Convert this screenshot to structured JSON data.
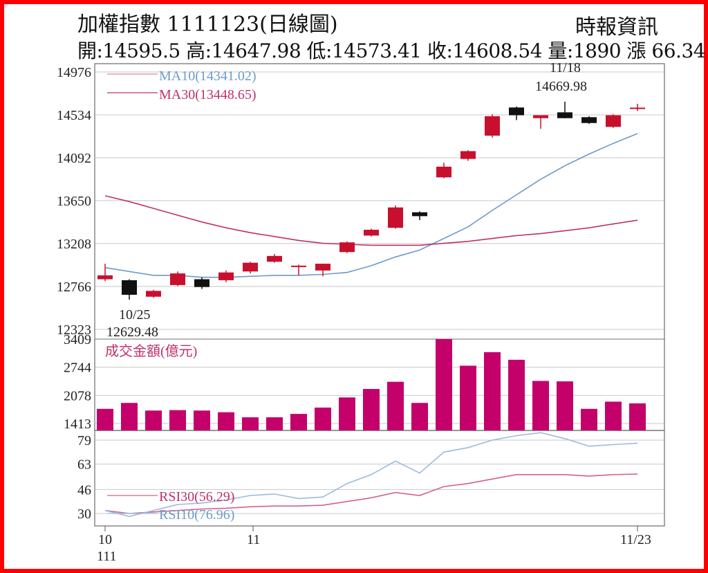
{
  "header": {
    "title": "加權指數 1111123(日線圖)",
    "source": "時報資訊",
    "summary": "開:14595.5 高:14647.98 低:14573.41 收:14608.54 量:1890 漲 66.34"
  },
  "colors": {
    "frame": "#ff0000",
    "up": "#c8102e",
    "down": "#111111",
    "volume": "#c4006a",
    "ma10": "#6b9bc9",
    "ma30": "#c0306a",
    "rsi30": "#d2608f",
    "rsi10": "#9bbbdc",
    "grid": "#c8c8c8"
  },
  "chart_data": [
    {
      "type": "candlestick",
      "panel": "price",
      "ylim": [
        12323,
        14976
      ],
      "yticks": [
        "14976",
        "14534",
        "14092",
        "13650",
        "13208",
        "12766",
        "12323"
      ],
      "grid": true,
      "candles": [
        {
          "o": 12840,
          "h": 13000,
          "l": 12820,
          "c": 12880
        },
        {
          "o": 12830,
          "h": 12840,
          "l": 12629.48,
          "c": 12680
        },
        {
          "o": 12660,
          "h": 12730,
          "l": 12650,
          "c": 12720
        },
        {
          "o": 12780,
          "h": 12920,
          "l": 12770,
          "c": 12900
        },
        {
          "o": 12840,
          "h": 12860,
          "l": 12740,
          "c": 12760
        },
        {
          "o": 12830,
          "h": 12930,
          "l": 12810,
          "c": 12910
        },
        {
          "o": 12920,
          "h": 13020,
          "l": 12900,
          "c": 13010
        },
        {
          "o": 13020,
          "h": 13100,
          "l": 13010,
          "c": 13080
        },
        {
          "o": 12970,
          "h": 12990,
          "l": 12880,
          "c": 12980
        },
        {
          "o": 12930,
          "h": 13000,
          "l": 12870,
          "c": 13000
        },
        {
          "o": 13120,
          "h": 13230,
          "l": 13110,
          "c": 13220
        },
        {
          "o": 13290,
          "h": 13360,
          "l": 13280,
          "c": 13350
        },
        {
          "o": 13370,
          "h": 13600,
          "l": 13360,
          "c": 13580
        },
        {
          "o": 13530,
          "h": 13540,
          "l": 13450,
          "c": 13490
        },
        {
          "o": 13890,
          "h": 14040,
          "l": 13880,
          "c": 14000
        },
        {
          "o": 14080,
          "h": 14170,
          "l": 14060,
          "c": 14160
        },
        {
          "o": 14320,
          "h": 14540,
          "l": 14300,
          "c": 14520
        },
        {
          "o": 14610,
          "h": 14620,
          "l": 14480,
          "c": 14530
        },
        {
          "o": 14500,
          "h": 14520,
          "l": 14390,
          "c": 14530
        },
        {
          "o": 14560,
          "h": 14669.98,
          "l": 14500,
          "c": 14500
        },
        {
          "o": 14510,
          "h": 14520,
          "l": 14440,
          "c": 14450
        },
        {
          "o": 14410,
          "h": 14540,
          "l": 14400,
          "c": 14530
        },
        {
          "o": 14595.5,
          "h": 14647.98,
          "l": 14573.41,
          "c": 14608.54
        }
      ],
      "series": [
        {
          "name": "MA10(14341.02)",
          "values": [
            12960,
            12920,
            12880,
            12880,
            12860,
            12860,
            12870,
            12880,
            12880,
            12890,
            12910,
            12980,
            13070,
            13140,
            13260,
            13380,
            13550,
            13710,
            13870,
            14010,
            14130,
            14240,
            14341.02
          ]
        },
        {
          "name": "MA30(13448.65)",
          "values": [
            13700,
            13640,
            13570,
            13500,
            13430,
            13370,
            13320,
            13280,
            13240,
            13210,
            13200,
            13190,
            13190,
            13190,
            13210,
            13230,
            13260,
            13290,
            13310,
            13340,
            13370,
            13410,
            13448.65
          ]
        }
      ],
      "annotations": [
        {
          "label": "10/25",
          "value": "12629.48"
        },
        {
          "label": "11/18",
          "value": "14669.98"
        }
      ]
    },
    {
      "type": "bar",
      "panel": "volume",
      "title": "成交金額(億元)",
      "ylim": [
        1413,
        3409
      ],
      "yticks": [
        "3409",
        "2744",
        "2078",
        "1413"
      ],
      "values": [
        1760,
        1900,
        1720,
        1730,
        1720,
        1680,
        1560,
        1560,
        1640,
        1790,
        2030,
        2230,
        2400,
        1900,
        3409,
        2780,
        3100,
        2920,
        2420,
        2410,
        1760,
        1930,
        1890
      ]
    },
    {
      "type": "line",
      "panel": "rsi",
      "ylim": [
        30,
        79
      ],
      "yticks": [
        "79",
        "63",
        "46",
        "30"
      ],
      "series": [
        {
          "name": "RSI30(56.29)",
          "values": [
            32,
            30,
            31,
            32,
            33,
            33.5,
            34.5,
            35,
            35,
            35.5,
            38,
            40.5,
            44,
            42,
            48,
            50,
            53,
            56,
            56,
            56,
            55,
            56,
            56.29
          ]
        },
        {
          "name": "RSI10(76.96)",
          "values": [
            32,
            28,
            32,
            36,
            37,
            39,
            42,
            43,
            40,
            41,
            50,
            56,
            65,
            57,
            71,
            74,
            79,
            82,
            84,
            80,
            75,
            76,
            76.96
          ]
        }
      ]
    }
  ],
  "xaxis": {
    "labels": [
      "10",
      "111",
      "11",
      "11/23"
    ]
  }
}
